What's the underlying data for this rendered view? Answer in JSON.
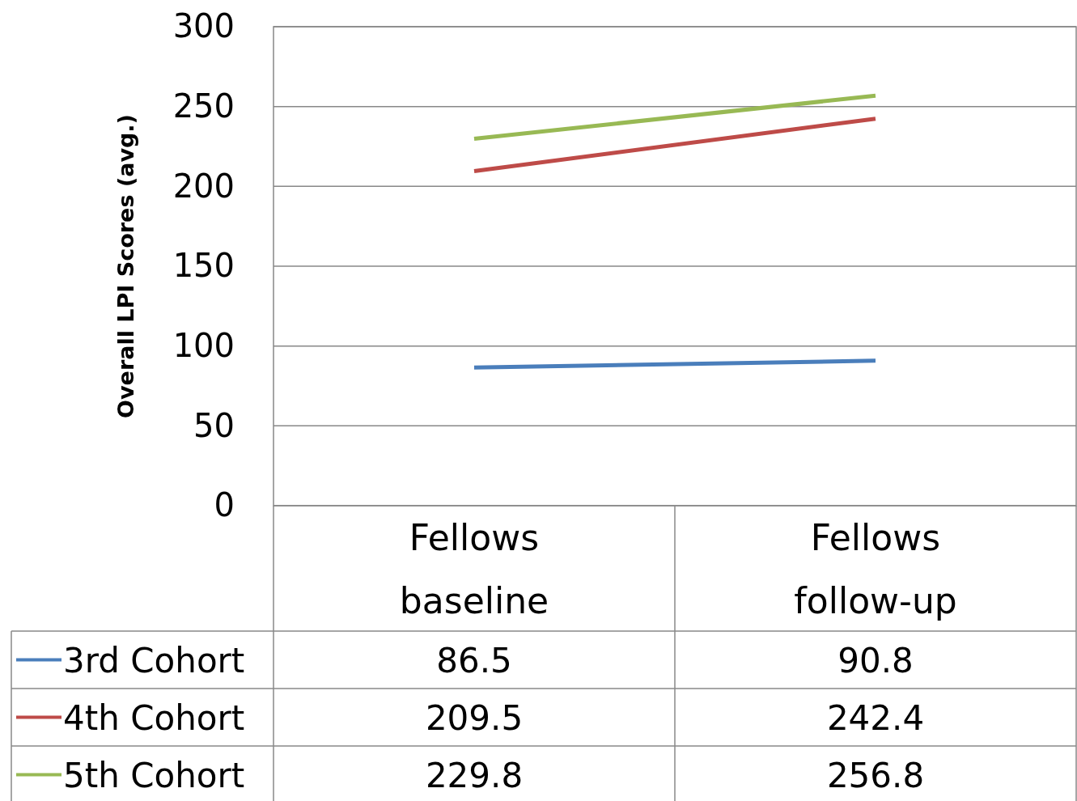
{
  "chart_data": {
    "type": "line",
    "ylabel": "Overall LPI Scores (avg.)",
    "categories": [
      "Fellows baseline",
      "Fellows follow-up"
    ],
    "series": [
      {
        "name": "3rd Cohort",
        "color": "#4a7ebb",
        "values": [
          86.5,
          90.8
        ]
      },
      {
        "name": "4th Cohort",
        "color": "#be4b48",
        "values": [
          209.5,
          242.4
        ]
      },
      {
        "name": "5th Cohort",
        "color": "#98b954",
        "values": [
          229.8,
          256.8
        ]
      }
    ],
    "ylim": [
      0,
      300
    ],
    "yticks": [
      0,
      50,
      100,
      150,
      200,
      250,
      300
    ],
    "grid": "y",
    "legend": "bottom",
    "data_labels": true,
    "marker": "none",
    "line_style": "solid"
  }
}
